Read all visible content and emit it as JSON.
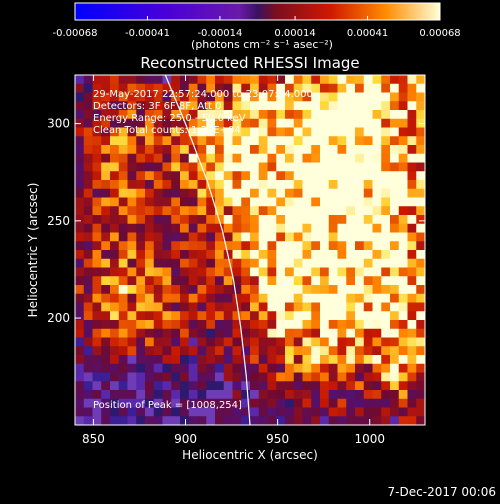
{
  "colorbar": {
    "ticks": [
      "-0.00068",
      "-0.00041",
      "-0.00014",
      "0.00014",
      "0.00041",
      "0.00068"
    ],
    "range": [
      -0.00068,
      0.00068
    ],
    "unit_label": "(photons cm⁻² s⁻¹ asec⁻²)"
  },
  "chart_data": {
    "type": "heatmap",
    "title": "Reconstructed RHESSI Image",
    "xlabel": "Heliocentric X (arcsec)",
    "ylabel": "Heliocentric Y (arcsec)",
    "xlim": [
      840,
      1030
    ],
    "ylim": [
      145,
      325
    ],
    "xticks": [
      850,
      900,
      950,
      1000
    ],
    "yticks": [
      200,
      250,
      300
    ],
    "peak": [
      1008,
      254
    ],
    "limb_curve": [
      [
        889,
        325
      ],
      [
        900,
        300
      ],
      [
        912,
        270
      ],
      [
        920,
        245
      ],
      [
        926,
        220
      ],
      [
        930,
        195
      ],
      [
        933,
        170
      ],
      [
        935,
        145
      ]
    ],
    "annotations": [
      "29-May-2017 22:57:24.000 to 23:07:24.000",
      "Detectors: 3F 6F 8F, Att 0",
      "Energy Range: 25.0 - 50.0 keV",
      "Clean      Total counts: 1.37E+04"
    ],
    "peak_label": "Position of Peak = [1008,254]"
  },
  "footer": {
    "timestamp": "7-Dec-2017 00:06"
  },
  "colors": {
    "background": "#000000",
    "limb": "#ffffff"
  }
}
